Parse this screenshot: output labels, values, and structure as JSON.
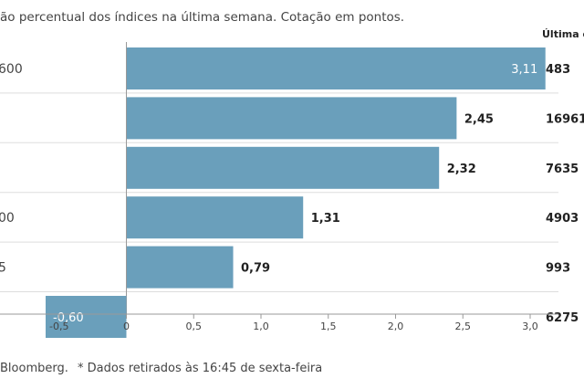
{
  "subtitle": "ão percentual dos índices na última semana. Cotação em pontos.",
  "last_column_header": "Última c",
  "source": "Bloomberg.",
  "footnote": "* Dados retirados às 16:45 de sexta-feira",
  "colors": {
    "bar": "#6a9fbb",
    "axis": "#999999",
    "grid": "#dddddd"
  },
  "chart_data": {
    "type": "bar",
    "orientation": "horizontal",
    "categories": [
      "600",
      "",
      "",
      "00",
      "5",
      ""
    ],
    "values": [
      3.11,
      2.45,
      2.32,
      1.31,
      0.79,
      -0.6
    ],
    "value_labels": [
      "3,11",
      "2,45",
      "2,32",
      "1,31",
      "0,79",
      "-0,60"
    ],
    "last_values": [
      "483",
      "16961",
      "7635",
      "4903",
      "993",
      "6275"
    ],
    "xlim": [
      -1.0,
      3.2
    ],
    "x_ticks": [
      -1.0,
      -0.5,
      0,
      0.5,
      1.0,
      1.5,
      2.0,
      2.5,
      3.0
    ],
    "x_tick_labels": [
      "",
      "-0,5",
      "0",
      "0,5",
      "1,0",
      "1,5",
      "2,0",
      "2,5",
      "3,0"
    ],
    "grid": "horizontal row dividers"
  }
}
